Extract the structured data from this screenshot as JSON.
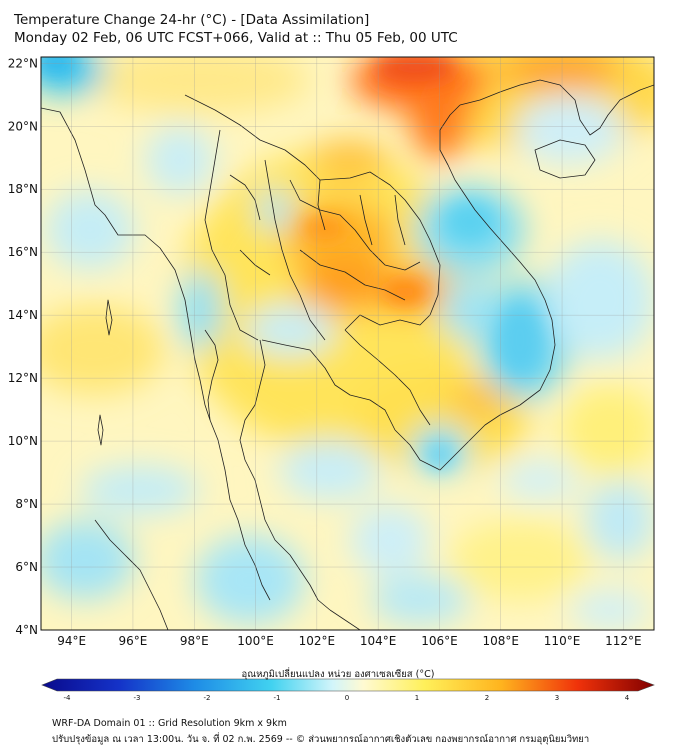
{
  "title": {
    "line1": "Temperature Change 24-hr (°C) - [Data Assimilation]",
    "line2": "Monday 02 Feb, 06 UTC FCST+066, Valid at :: Thu 05 Feb, 00 UTC"
  },
  "map": {
    "lat_labels": [
      "22°N",
      "20°N",
      "18°N",
      "16°N",
      "14°N",
      "12°N",
      "10°N",
      "8°N",
      "6°N",
      "4°N"
    ],
    "lon_labels": [
      "94°E",
      "96°E",
      "98°E",
      "100°E",
      "102°E",
      "104°E",
      "106°E",
      "108°E",
      "110°E",
      "112°E"
    ],
    "lat_values": [
      22,
      20,
      18,
      16,
      14,
      12,
      10,
      8,
      6,
      4
    ],
    "lon_values": [
      94,
      96,
      98,
      100,
      102,
      104,
      106,
      108,
      110,
      112
    ],
    "extent": {
      "lon_min": 93,
      "lon_max": 113,
      "lat_min": 4,
      "lat_max": 22.2
    },
    "field": "24-hr temperature change",
    "unit": "°C"
  },
  "colorbar": {
    "label": "อุณหภูมิเปลี่ยนแปลง หน่วย องศาเซลเซียส (°C)",
    "ticks": [
      "-4",
      "-3",
      "-2",
      "-1",
      "0",
      "1",
      "2",
      "3",
      "4"
    ],
    "tick_values": [
      -4,
      -3,
      -2,
      -1,
      0,
      1,
      2,
      3,
      4
    ],
    "stops": [
      {
        "v": -4,
        "c": "#0a0a8c"
      },
      {
        "v": -3,
        "c": "#1432c8"
      },
      {
        "v": -2,
        "c": "#1e8ce6"
      },
      {
        "v": -1,
        "c": "#41d2f0"
      },
      {
        "v": -0.2,
        "c": "#d2f5fa"
      },
      {
        "v": 0.2,
        "c": "#fffad2"
      },
      {
        "v": 1,
        "c": "#fff05a"
      },
      {
        "v": 2,
        "c": "#ffb41e"
      },
      {
        "v": 3,
        "c": "#f0320a"
      },
      {
        "v": 4,
        "c": "#820000"
      }
    ]
  },
  "footer": {
    "line1": "WRF-DA Domain 01 :: Grid Resolution 9km x 9km",
    "line2": "ปรับปรุงข้อมูล ณ เวลา 13:00น. วัน จ. ที่ 02 ก.พ. 2569 -- © ส่วนพยากรณ์อากาศเชิงตัวเลข กองพยากรณ์อากาศ กรมอุตุนิยมวิทยา"
  }
}
